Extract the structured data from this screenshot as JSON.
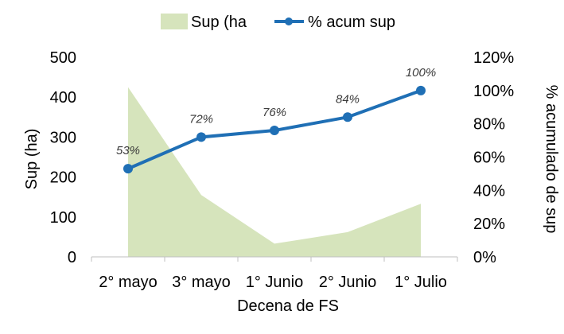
{
  "chart_data": {
    "type": "area+line",
    "xlabel": "Decena de FS",
    "ylabel": "Sup (ha)",
    "y2label": "% acumulado de sup",
    "categories": [
      "2° mayo",
      "3° mayo",
      "1° Junio",
      "2° Junio",
      "1° Julio"
    ],
    "ylim": [
      0,
      500
    ],
    "y_ticks": [
      "0",
      "100",
      "200",
      "300",
      "400",
      "500"
    ],
    "y2lim": [
      0,
      1.2
    ],
    "y2_ticks": [
      "0%",
      "20%",
      "40%",
      "60%",
      "80%",
      "100%",
      "120%"
    ],
    "legend_position": "top",
    "series": [
      {
        "name": "Sup (ha",
        "type": "area",
        "axis": "left",
        "color": "#d6e4bc",
        "values": [
          425,
          155,
          33,
          62,
          133
        ]
      },
      {
        "name": "% acum sup",
        "type": "line",
        "axis": "right",
        "color": "#1f6fb5",
        "values": [
          0.53,
          0.72,
          0.76,
          0.84,
          1.0
        ],
        "labels": [
          "53%",
          "72%",
          "76%",
          "84%",
          "100%"
        ]
      }
    ],
    "grid": false
  }
}
